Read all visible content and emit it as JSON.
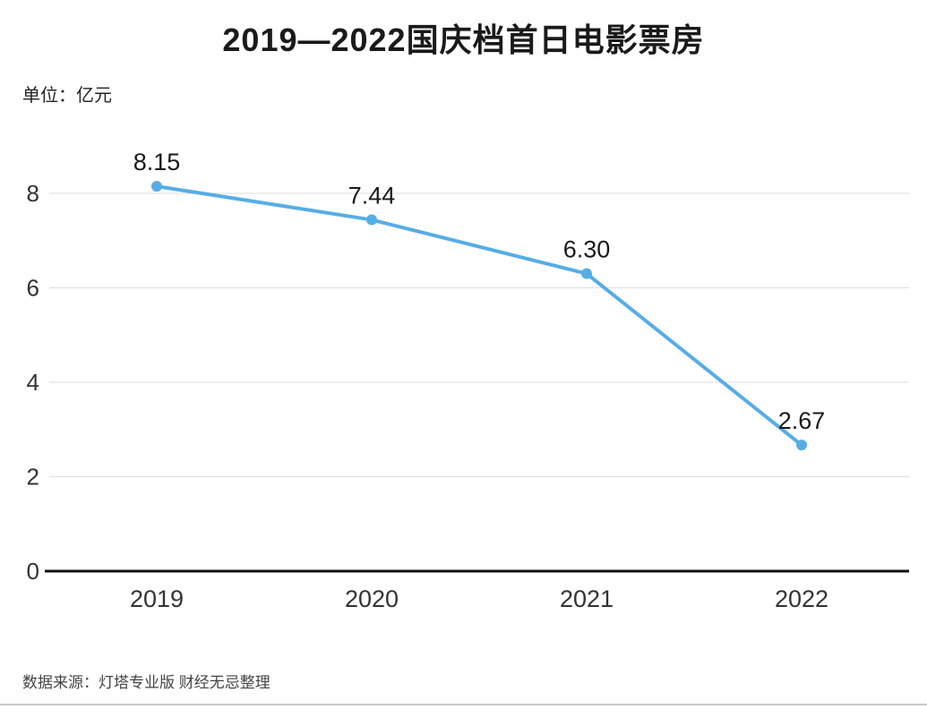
{
  "page": {
    "title": "2019—2022国庆档首日电影票房",
    "unit_label": "单位：亿元",
    "source": "数据来源：灯塔专业版 财经无忌整理"
  },
  "chart_data": {
    "type": "line",
    "title": "2019—2022国庆档首日电影票房",
    "xlabel": "",
    "ylabel": "单位：亿元",
    "categories": [
      "2019",
      "2020",
      "2021",
      "2022"
    ],
    "values": [
      8.15,
      7.44,
      6.3,
      2.67
    ],
    "value_labels": [
      "8.15",
      "7.44",
      "6.30",
      "2.67"
    ],
    "ylim": [
      0,
      8.8
    ],
    "yticks": [
      0,
      2,
      4,
      6,
      8
    ],
    "grid": true,
    "legend_position": "none",
    "line_color": "#56ade6",
    "marker_color": "#56ade6",
    "gridline_color": "#dddddd",
    "axis_line_color": "#111111",
    "tick_label_color": "#333333",
    "data_label_color": "#1a1a1a",
    "source": "数据来源：灯塔专业版 财经无忌整理"
  }
}
